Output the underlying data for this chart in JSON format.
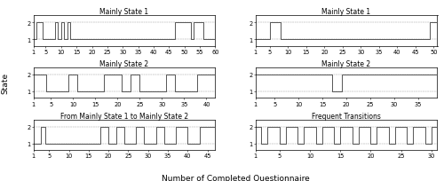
{
  "titles": [
    "Mainly State 1",
    "Mainly State 1",
    "Mainly State 2",
    "Mainly State 2",
    "From Mainly State 1 to Mainly State 2",
    "Frequent Transitions"
  ],
  "ylabel": "State",
  "xlabel": "Number of Completed Questionnaire",
  "yticks": [
    1,
    2
  ],
  "yticklabels": [
    "1",
    "2"
  ],
  "ylim": [
    0.6,
    2.4
  ],
  "plots": [
    {
      "xlim": [
        1,
        60
      ],
      "xticks": [
        1,
        5,
        10,
        15,
        20,
        25,
        30,
        35,
        40,
        45,
        50,
        55,
        60
      ],
      "xticklabels": [
        "1",
        "5",
        "10",
        "15",
        "20",
        "25",
        "30",
        "35",
        "40",
        "45",
        "50",
        "55",
        "60"
      ],
      "states": [
        1,
        2,
        2,
        1,
        1,
        1,
        1,
        2,
        1,
        2,
        1,
        2,
        1,
        1,
        1,
        1,
        1,
        1,
        1,
        1,
        1,
        1,
        1,
        1,
        1,
        1,
        1,
        1,
        1,
        1,
        1,
        1,
        1,
        1,
        1,
        1,
        1,
        1,
        1,
        1,
        1,
        1,
        1,
        1,
        1,
        1,
        2,
        2,
        2,
        2,
        2,
        1,
        2,
        2,
        2,
        1,
        1,
        1,
        1,
        1
      ]
    },
    {
      "xlim": [
        1,
        51
      ],
      "xticks": [
        1,
        5,
        10,
        15,
        20,
        25,
        30,
        35,
        40,
        45,
        50
      ],
      "xticklabels": [
        "1",
        "5",
        "10",
        "15",
        "20",
        "25",
        "30",
        "35",
        "40",
        "45",
        "50"
      ],
      "states": [
        1,
        1,
        1,
        1,
        2,
        2,
        2,
        1,
        1,
        1,
        1,
        1,
        1,
        1,
        1,
        1,
        1,
        1,
        1,
        1,
        1,
        1,
        1,
        1,
        1,
        1,
        1,
        1,
        1,
        1,
        1,
        1,
        1,
        1,
        1,
        1,
        1,
        1,
        1,
        1,
        1,
        1,
        1,
        1,
        1,
        1,
        1,
        1,
        2,
        2,
        2
      ]
    },
    {
      "xlim": [
        1,
        42
      ],
      "xticks": [
        1,
        5,
        10,
        15,
        20,
        25,
        30,
        35,
        40
      ],
      "xticklabels": [
        "1",
        "5",
        "10",
        "15",
        "20",
        "25",
        "30",
        "35",
        "40"
      ],
      "states": [
        2,
        2,
        2,
        1,
        1,
        1,
        1,
        1,
        2,
        2,
        1,
        1,
        1,
        1,
        1,
        1,
        2,
        2,
        2,
        2,
        1,
        1,
        2,
        2,
        1,
        1,
        1,
        1,
        1,
        1,
        2,
        2,
        1,
        1,
        1,
        1,
        1,
        2,
        2,
        2,
        2,
        2
      ]
    },
    {
      "xlim": [
        1,
        39
      ],
      "xticks": [
        1,
        5,
        10,
        15,
        20,
        25,
        30,
        35
      ],
      "xticklabels": [
        "1",
        "5",
        "10",
        "15",
        "20",
        "25",
        "30",
        "35"
      ],
      "states": [
        2,
        2,
        2,
        2,
        2,
        2,
        2,
        2,
        2,
        2,
        2,
        2,
        2,
        2,
        2,
        2,
        1,
        1,
        2,
        2,
        2,
        2,
        2,
        2,
        2,
        2,
        2,
        2,
        2,
        2,
        2,
        2,
        2,
        2,
        2,
        2,
        2,
        2,
        2
      ]
    },
    {
      "xlim": [
        1,
        47
      ],
      "xticks": [
        1,
        5,
        10,
        15,
        20,
        25,
        30,
        35,
        40,
        45
      ],
      "xticklabels": [
        "1",
        "5",
        "10",
        "15",
        "20",
        "25",
        "30",
        "35",
        "40",
        "45"
      ],
      "states": [
        1,
        1,
        2,
        1,
        1,
        1,
        1,
        1,
        1,
        1,
        1,
        1,
        1,
        1,
        1,
        1,
        1,
        2,
        2,
        1,
        1,
        2,
        2,
        1,
        1,
        1,
        2,
        2,
        1,
        1,
        1,
        2,
        2,
        1,
        1,
        1,
        2,
        2,
        2,
        1,
        1,
        1,
        2,
        2,
        2,
        2,
        2
      ]
    },
    {
      "xlim": [
        1,
        31
      ],
      "xticks": [
        1,
        5,
        10,
        15,
        20,
        25,
        30
      ],
      "xticklabels": [
        "1",
        "5",
        "10",
        "15",
        "20",
        "25",
        "30"
      ],
      "states": [
        2,
        1,
        2,
        2,
        1,
        2,
        2,
        1,
        2,
        2,
        1,
        2,
        2,
        1,
        2,
        2,
        1,
        2,
        2,
        1,
        2,
        2,
        1,
        2,
        2,
        1,
        2,
        2,
        1,
        2,
        2
      ]
    }
  ],
  "line_color": "#555555",
  "line_width": 0.7,
  "title_fontsize": 5.5,
  "label_fontsize": 6.5,
  "tick_fontsize": 4.8,
  "spine_linewidth": 0.5,
  "background_color": "#ffffff"
}
